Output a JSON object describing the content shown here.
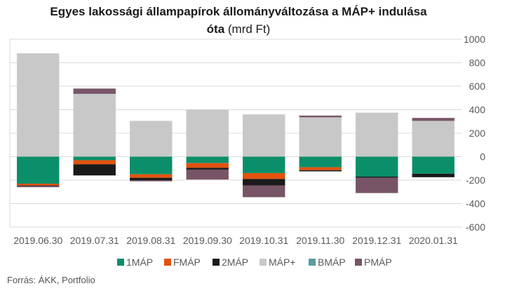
{
  "title_bold": "Egyes lakossági állampapírok állományváltozása a MÁP+ indulása óta",
  "title_normal": "(mrd Ft)",
  "source": "Forrás:  ÁKK, Portfolio",
  "colors": {
    "1MÁP": "#0a8f6a",
    "FMÁP": "#e2520e",
    "2MÁP": "#1a1a1a",
    "MÁP+": "#c8c8c8",
    "BMÁP": "#5a9aa0",
    "PMÁP": "#775566",
    "grid": "#d9d9d9",
    "axis_text": "#595959"
  },
  "chart_data": {
    "type": "bar",
    "stacked": true,
    "categories": [
      "2019.06.30",
      "2019.07.31",
      "2019.08.31",
      "2019.09.30",
      "2019.10.31",
      "2019.11.30",
      "2019.12.31",
      "2020.01.31"
    ],
    "ylim": [
      -600,
      1000
    ],
    "yticks": [
      1000,
      800,
      600,
      400,
      200,
      0,
      -200,
      -400,
      -600
    ],
    "y_axis_position": "right",
    "grid": true,
    "legend_position": "bottom",
    "series": [
      {
        "name": "1MÁP",
        "values": [
          -230,
          -30,
          -150,
          -55,
          -140,
          -90,
          -170,
          -145
        ]
      },
      {
        "name": "FMÁP",
        "values": [
          -15,
          -35,
          -30,
          -40,
          -50,
          -25,
          0,
          0
        ]
      },
      {
        "name": "2MÁP",
        "values": [
          -5,
          -95,
          -20,
          -15,
          -55,
          -10,
          -10,
          -30
        ]
      },
      {
        "name": "MÁP+",
        "values": [
          880,
          535,
          305,
          400,
          360,
          335,
          375,
          305
        ]
      },
      {
        "name": "BMÁP",
        "values": [
          0,
          0,
          0,
          0,
          0,
          0,
          0,
          0
        ]
      },
      {
        "name": "PMÁP",
        "values": [
          -10,
          45,
          -10,
          -85,
          -100,
          15,
          -130,
          25
        ]
      }
    ]
  }
}
